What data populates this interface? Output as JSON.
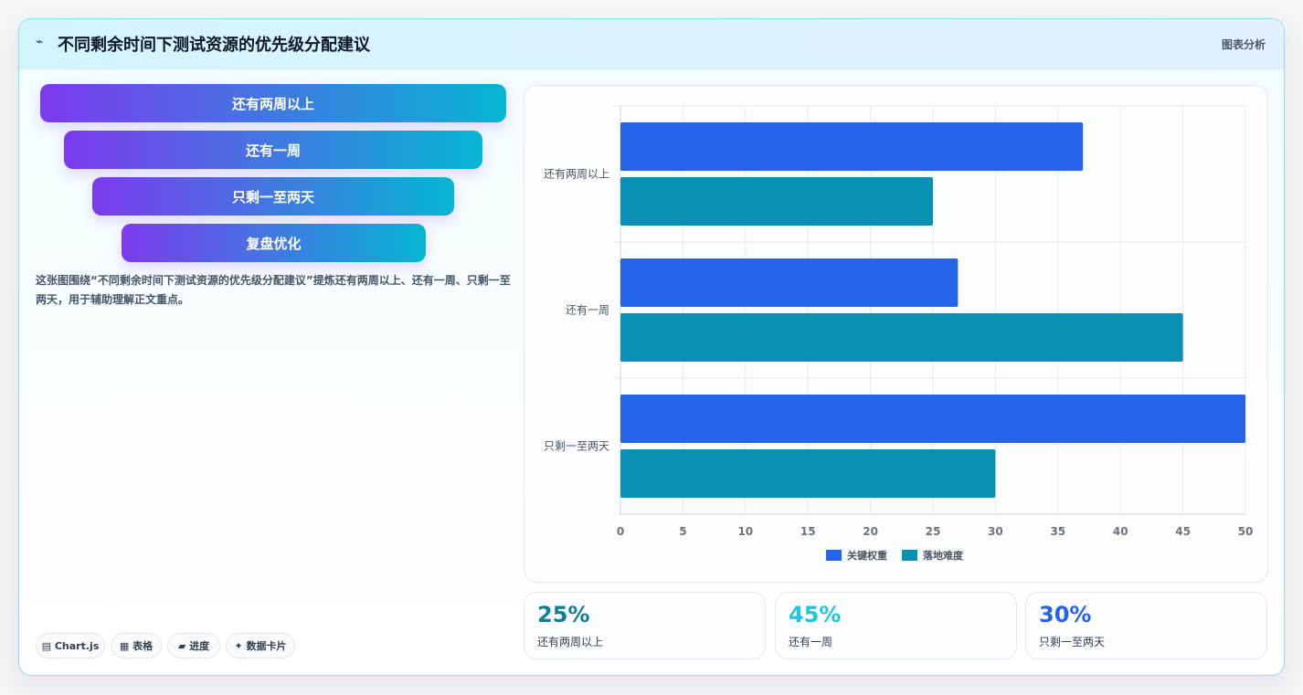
{
  "header": {
    "icon": "line-chart-icon",
    "title": "不同剩余时间下测试资源的优先级分配建议",
    "tag": "图表分析"
  },
  "funnel": {
    "items": [
      "还有两周以上",
      "还有一周",
      "只剩一至两天",
      "复盘优化"
    ]
  },
  "description": "这张图围绕“不同剩余时间下测试资源的优先级分配建议”提炼还有两周以上、还有一周、只剩一至两天，用于辅助理解正文重点。",
  "chips": [
    {
      "icon": "chart-icon",
      "glyph": "▤",
      "label": "Chart.js"
    },
    {
      "icon": "table-icon",
      "glyph": "▦",
      "label": "表格"
    },
    {
      "icon": "progress-icon",
      "glyph": "▰",
      "label": "进度"
    },
    {
      "icon": "sparkle-icon",
      "glyph": "✦",
      "label": "数据卡片"
    }
  ],
  "stats": [
    {
      "value": "25%",
      "label": "还有两周以上",
      "color": "#0e7f9b"
    },
    {
      "value": "45%",
      "label": "还有一周",
      "color": "#22c5dc"
    },
    {
      "value": "30%",
      "label": "只剩一至两天",
      "color": "#2563eb"
    }
  ],
  "chart_data": {
    "type": "bar",
    "orientation": "horizontal",
    "categories": [
      "还有两周以上",
      "还有一周",
      "只剩一至两天"
    ],
    "series": [
      {
        "name": "关键权重",
        "values": [
          37,
          27,
          50
        ],
        "color": "#2563eb"
      },
      {
        "name": "落地难度",
        "values": [
          25,
          45,
          30
        ],
        "color": "#0891b2"
      }
    ],
    "xlim": [
      0,
      50
    ],
    "xticks": [
      0,
      5,
      10,
      15,
      20,
      25,
      30,
      35,
      40,
      45,
      50
    ],
    "grid": true,
    "legend": "bottom"
  }
}
